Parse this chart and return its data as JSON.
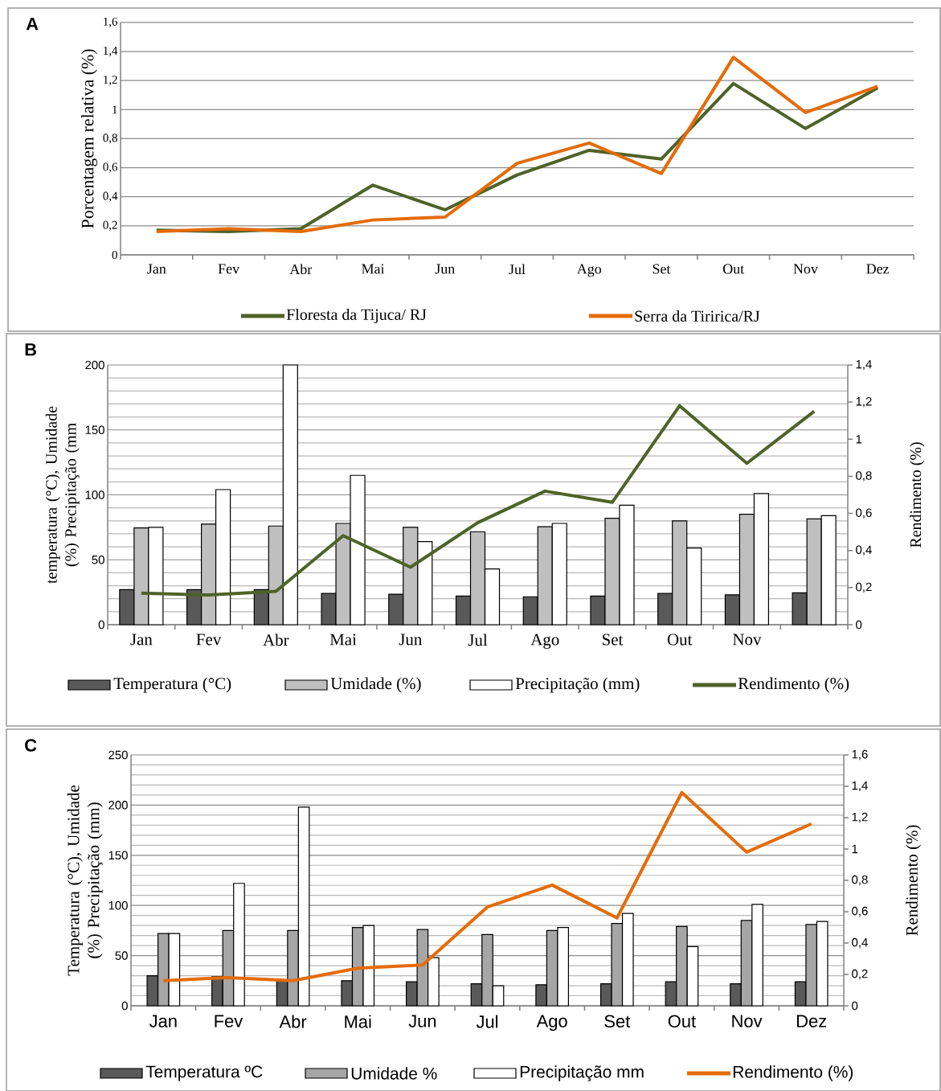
{
  "chart_data": [
    {
      "type": "line",
      "title": "A",
      "ylabel": "Porcentagem relativa (%)",
      "categories": [
        "Jan",
        "Fev",
        "Abr",
        "Mai",
        "Jun",
        "Jul",
        "Ago",
        "Set",
        "Out",
        "Nov",
        "Dez"
      ],
      "ylim": [
        0,
        1.6
      ],
      "yticks": [
        0,
        {
          "value": 0.2,
          "label": "0,2"
        },
        {
          "value": 0.4,
          "label": "0,4"
        },
        {
          "value": 0.6,
          "label": "0,6"
        },
        {
          "value": 0.8,
          "label": "0,8"
        },
        1,
        {
          "value": 1.2,
          "label": "1,2"
        },
        {
          "value": 1.4,
          "label": "1,4"
        },
        {
          "value": 1.6,
          "label": "1,6"
        }
      ],
      "grid": "y",
      "legend": "bottom",
      "series": [
        {
          "name": "Floresta da Tijuca/ RJ",
          "color": "#4f6228",
          "values": [
            0.17,
            0.16,
            0.18,
            0.48,
            0.31,
            0.55,
            0.72,
            0.66,
            1.18,
            0.87,
            1.15
          ]
        },
        {
          "name": "Serra da Tiririca/RJ",
          "color": "#e46c0a",
          "values": [
            0.16,
            0.18,
            0.16,
            0.24,
            0.26,
            0.63,
            0.77,
            0.56,
            1.36,
            0.98,
            1.16
          ]
        }
      ]
    },
    {
      "type": "bar",
      "title": "B",
      "ylabel": "temperatura (°C),  Umidade (%) Precipitação (mm",
      "y2label": "Rendimento (%)",
      "categories": [
        "Jan",
        "Fev",
        "Abr",
        "Mai",
        "Jun",
        "Jul",
        "Ago",
        "Set",
        "Out",
        "Nov",
        null
      ],
      "ylim": [
        0,
        200
      ],
      "yticks": [
        0,
        50,
        100,
        150,
        200
      ],
      "y2lim": [
        0,
        1.4
      ],
      "y2ticks": [
        0,
        {
          "value": 0.2,
          "label": "0,2"
        },
        {
          "value": 0.4,
          "label": "0,4"
        },
        {
          "value": 0.6,
          "label": "0,6"
        },
        {
          "value": 0.8,
          "label": "0,8"
        },
        1,
        {
          "value": 1.2,
          "label": "1,2"
        },
        {
          "value": 1.4,
          "label": "1,4"
        }
      ],
      "grid": "y",
      "legend": "bottom",
      "series": [
        {
          "name": "Temperatura (°C)",
          "color": "#595959",
          "values": [
            27,
            27,
            27,
            24,
            23.5,
            22,
            21.5,
            22,
            24,
            23,
            24.5
          ]
        },
        {
          "name": "Umidade (%)",
          "color": "#bfbfbf",
          "values": [
            74.5,
            77.5,
            76,
            78,
            75,
            71.5,
            75.5,
            82,
            80,
            85,
            81.5
          ]
        },
        {
          "name": "Precipitação (mm)",
          "color": "#ffffff",
          "values": [
            75,
            104,
            200,
            115,
            64,
            43,
            78,
            92,
            59,
            101,
            84
          ]
        },
        {
          "name": "Rendimento (%)",
          "type": "line",
          "axis": "y2",
          "color": "#4f6228",
          "values": [
            0.17,
            0.16,
            0.18,
            0.48,
            0.31,
            0.55,
            0.72,
            0.66,
            1.18,
            0.87,
            1.15
          ]
        }
      ]
    },
    {
      "type": "bar",
      "title": "C",
      "ylabel": "Temperatura (°C),  Umidade (%) Precipitação (mm)",
      "y2label": "Rendimento (%)",
      "categories": [
        "Jan",
        "Fev",
        "Abr",
        "Mai",
        "Jun",
        "Jul",
        "Ago",
        "Set",
        "Out",
        "Nov",
        "Dez"
      ],
      "ylim": [
        0,
        250
      ],
      "yticks": [
        0,
        50,
        100,
        150,
        200,
        250
      ],
      "y2lim": [
        0,
        1.6
      ],
      "y2ticks": [
        0,
        {
          "value": 0.2,
          "label": "0,2"
        },
        {
          "value": 0.4,
          "label": "0,4"
        },
        {
          "value": 0.6,
          "label": "0,6"
        },
        {
          "value": 0.8,
          "label": "0,8"
        },
        1,
        {
          "value": 1.2,
          "label": "1,2"
        },
        {
          "value": 1.4,
          "label": "1,4"
        },
        {
          "value": 1.6,
          "label": "1,6"
        }
      ],
      "grid": "y",
      "legend": "bottom",
      "series": [
        {
          "name": "Temperatura ºC",
          "color": "#595959",
          "values": [
            30,
            29,
            26,
            25,
            24,
            22,
            21,
            22,
            24,
            22,
            24
          ]
        },
        {
          "name": "Umidade %",
          "color": "#a6a6a6",
          "values": [
            72,
            75,
            75,
            78,
            76,
            71,
            75,
            82,
            79,
            85,
            81
          ]
        },
        {
          "name": "Precipitação mm",
          "color": "#ffffff",
          "values": [
            72,
            122,
            198,
            80,
            48,
            20,
            78,
            92,
            59,
            101,
            84
          ]
        },
        {
          "name": "Rendimento (%)",
          "type": "line",
          "axis": "y2",
          "color": "#e46c0a",
          "values": [
            0.16,
            0.18,
            0.16,
            0.24,
            0.26,
            0.63,
            0.77,
            0.56,
            1.36,
            0.98,
            1.16
          ]
        }
      ]
    }
  ]
}
